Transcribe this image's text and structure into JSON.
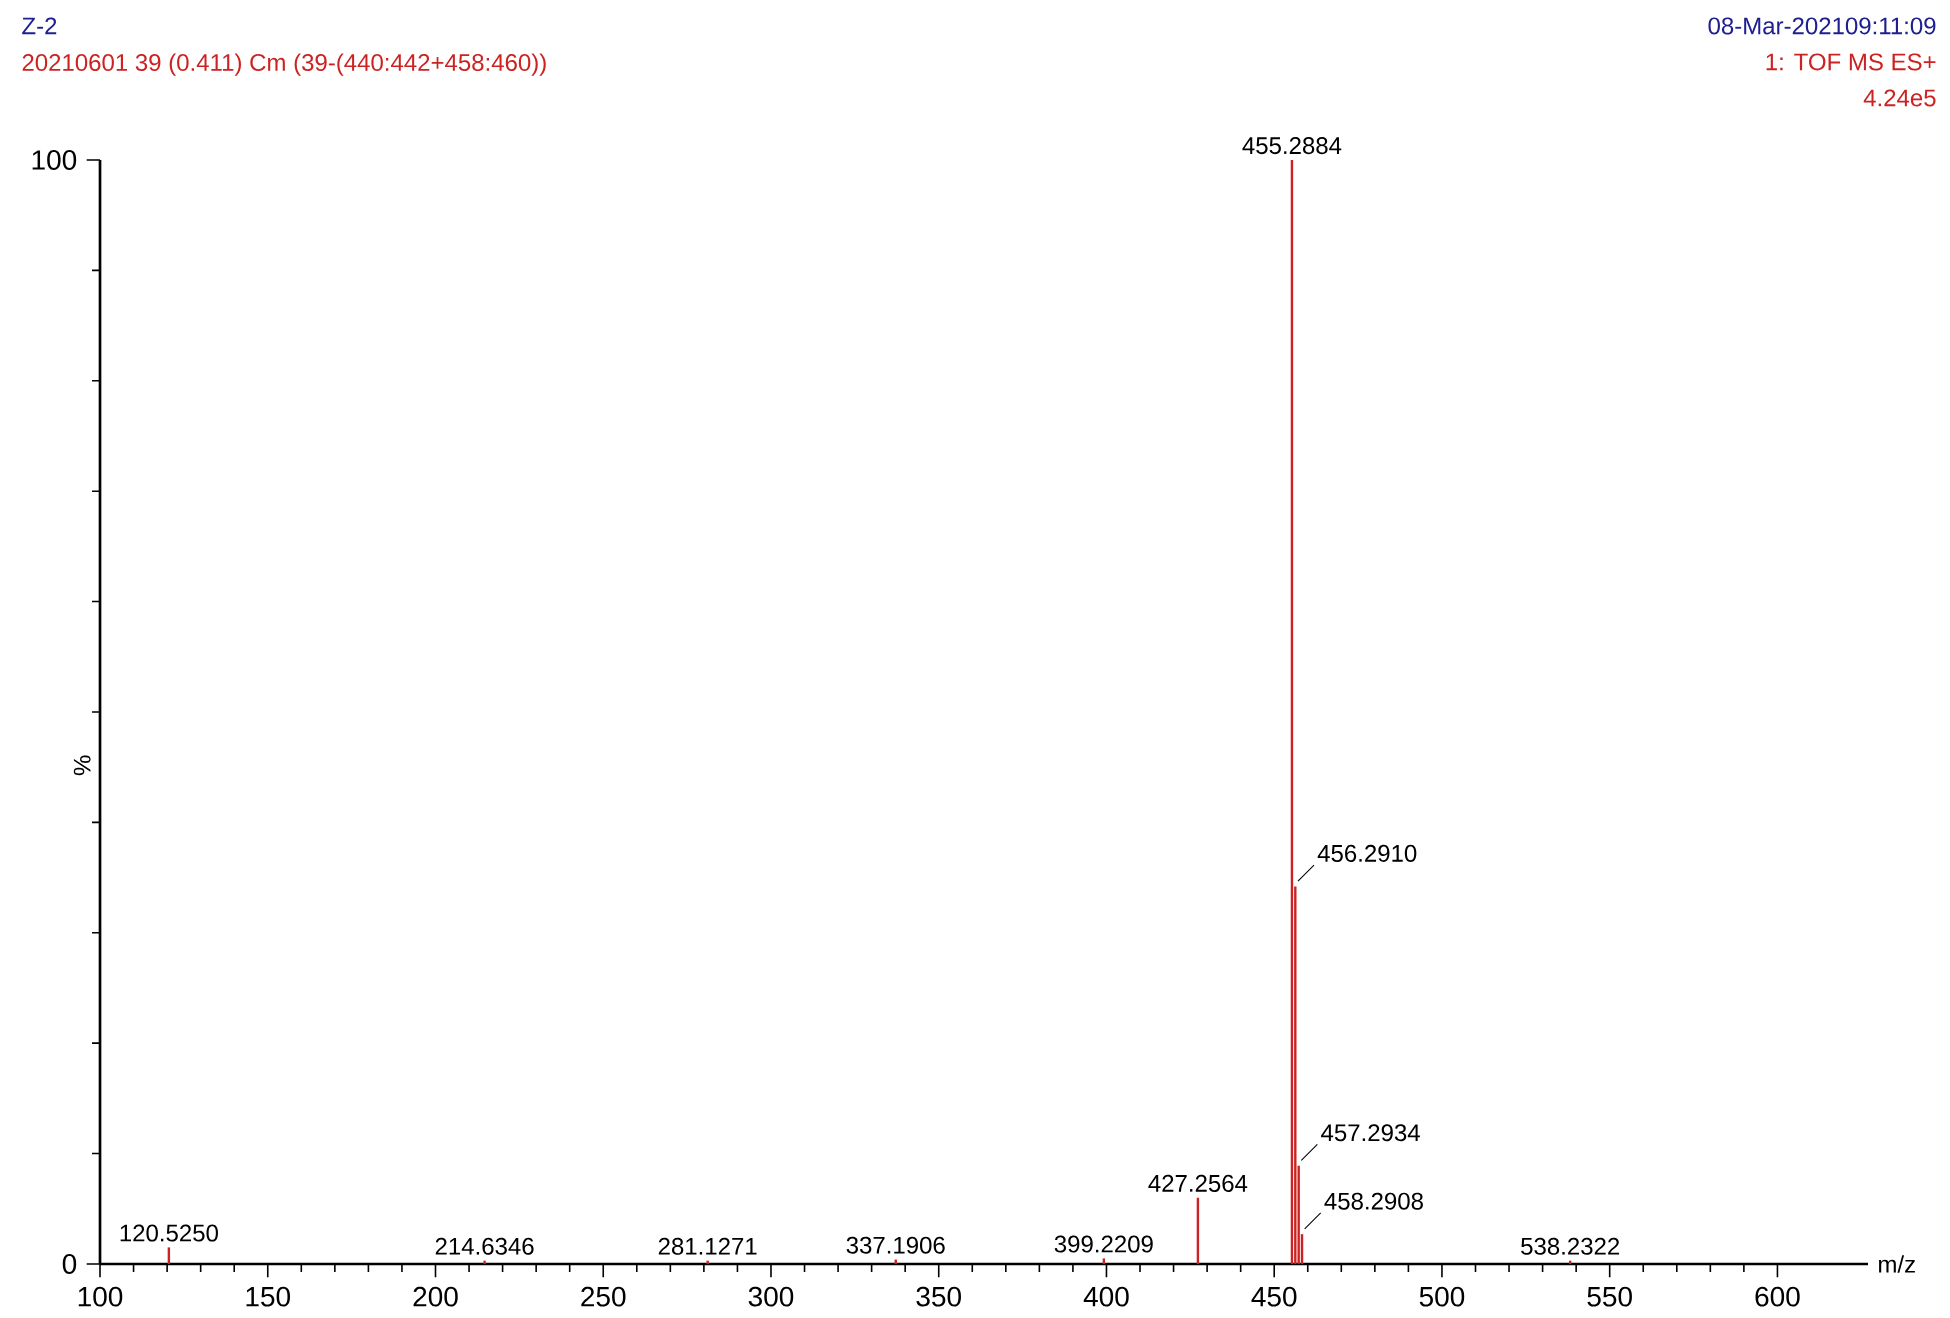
{
  "chart_data": {
    "type": "bar",
    "title": "Z-2",
    "subtitle": "20210601 39 (0.411) Cm (39-(440:442+458:460))",
    "xlabel": "m/z",
    "ylabel": "%",
    "x": [
      120.525,
      214.6346,
      281.1271,
      337.1906,
      399.2209,
      427.2564,
      455.2884,
      456.291,
      457.2934,
      458.2908,
      538.2322
    ],
    "values": [
      1.5,
      0.3,
      0.3,
      0.4,
      0.5,
      6,
      100,
      34.2,
      8.9,
      2.7,
      0.3
    ],
    "color": "#cc2222",
    "xlim": [
      100,
      627
    ],
    "ylim": [
      0,
      100
    ],
    "xticks": [
      100,
      150,
      200,
      250,
      300,
      350,
      400,
      450,
      500,
      550,
      600
    ],
    "yticks": [
      0,
      100
    ],
    "annotations": [
      "08-Mar-202109:11:09",
      "1: TOF MS ES+",
      "4.24e5",
      {
        "text": "120.5250",
        "x": 120.525,
        "y": 1.5
      },
      {
        "text": "214.6346",
        "x": 214.6346,
        "y": 0.3
      },
      {
        "text": "281.1271",
        "x": 281.1271,
        "y": 0.3
      },
      {
        "text": "337.1906",
        "x": 337.1906,
        "y": 0.4
      },
      {
        "text": "399.2209",
        "x": 399.2209,
        "y": 0.5
      },
      {
        "text": "427.2564",
        "x": 427.2564,
        "y": 6
      },
      {
        "text": "455.2884",
        "x": 455.2884,
        "y": 100
      },
      {
        "text": "456.2910",
        "x": 456.291,
        "y": 34.2
      },
      {
        "text": "457.2934",
        "x": 457.2934,
        "y": 8.9
      },
      {
        "text": "458.2908",
        "x": 458.2908,
        "y": 2.7
      },
      {
        "text": "538.2322",
        "x": 538.2322,
        "y": 0.3
      }
    ]
  }
}
